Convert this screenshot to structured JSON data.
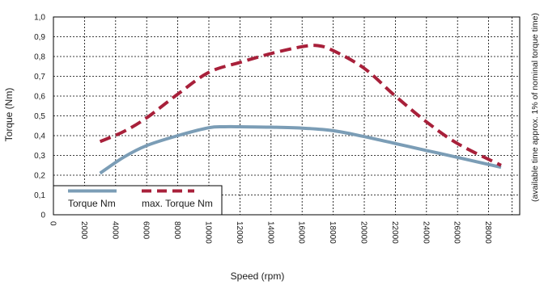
{
  "chart_data": {
    "type": "line",
    "xlabel": "Speed (rpm)",
    "ylabel": "Torque (Nm)",
    "side_note": "(available time approx. 1% of nominal torque time)",
    "xlim": [
      0,
      30000
    ],
    "ylim": [
      0,
      1.0
    ],
    "x_ticks": [
      0,
      2000,
      4000,
      6000,
      8000,
      10000,
      12000,
      14000,
      16000,
      18000,
      20000,
      22000,
      24000,
      26000,
      28000
    ],
    "x_tick_labels": [
      "0",
      "2000",
      "4000",
      "6000",
      "8000",
      "10000",
      "12000",
      "14000",
      "16000",
      "18000",
      "20000",
      "22000",
      "24000",
      "26000",
      "28000"
    ],
    "y_ticks": [
      0,
      0.1,
      0.2,
      0.3,
      0.4,
      0.5,
      0.6,
      0.7,
      0.8,
      0.9,
      1.0
    ],
    "y_tick_labels": [
      "0",
      "0,1",
      "0,2",
      "0,3",
      "0,4",
      "0,5",
      "0,6",
      "0,7",
      "0,8",
      "0,9",
      "1,0"
    ],
    "grid": true,
    "legend_position": "bottom-left",
    "series": [
      {
        "name": "Torque Nm",
        "color": "#7b9db6",
        "style": "solid",
        "x": [
          3000,
          4500,
          6000,
          8000,
          10000,
          11000,
          12000,
          14000,
          16000,
          18000,
          20000,
          22000,
          24000,
          26000,
          28800
        ],
        "y": [
          0.21,
          0.29,
          0.35,
          0.4,
          0.44,
          0.445,
          0.445,
          0.443,
          0.438,
          0.425,
          0.395,
          0.36,
          0.325,
          0.29,
          0.24
        ]
      },
      {
        "name": "max. Torque Nm",
        "color": "#a8203a",
        "style": "dashed",
        "x": [
          3000,
          4500,
          6000,
          8000,
          10000,
          12000,
          14000,
          16000,
          17000,
          18000,
          20000,
          22000,
          24000,
          26000,
          28800
        ],
        "y": [
          0.37,
          0.42,
          0.49,
          0.61,
          0.72,
          0.77,
          0.815,
          0.85,
          0.855,
          0.83,
          0.74,
          0.6,
          0.47,
          0.36,
          0.25
        ]
      }
    ]
  }
}
